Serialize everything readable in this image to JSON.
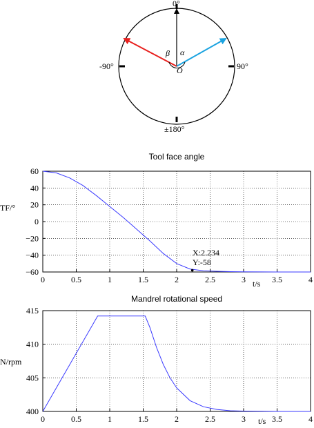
{
  "diagram": {
    "top_label": "0°",
    "left_label": "-90°",
    "right_label": "90°",
    "bottom_label": "±180°",
    "center_label": "O",
    "alpha_label": "α",
    "beta_label": "β",
    "colors": {
      "left_arrow": "#e8201e",
      "right_arrow": "#1ba3e0",
      "up_arrow": "#000000"
    }
  },
  "chart_data": [
    {
      "type": "line",
      "title": "Tool face angle",
      "ylabel": "TF/°",
      "xlabel": "t/s",
      "xlim": [
        0,
        4
      ],
      "ylim": [
        -60,
        60
      ],
      "x_ticks": [
        "0",
        "0.5",
        "1",
        "1.5",
        "2",
        "2.5",
        "3",
        "3.5",
        "4"
      ],
      "y_ticks": [
        "60",
        "40",
        "20",
        "0",
        "−20",
        "−40",
        "−60"
      ],
      "grid": true,
      "series": [
        {
          "color": "#3a3aff",
          "x": [
            0,
            0.2,
            0.4,
            0.6,
            0.8,
            1.0,
            1.2,
            1.4,
            1.6,
            1.8,
            2.0,
            2.2,
            2.4,
            2.6,
            2.8,
            3.0,
            3.5,
            4.0
          ],
          "y": [
            60,
            58,
            52,
            43,
            31,
            18,
            5,
            -9,
            -23,
            -38,
            -50,
            -56.5,
            -58.5,
            -59.2,
            -59.6,
            -59.8,
            -60,
            -60
          ]
        }
      ],
      "annotation": {
        "x": 2.234,
        "y": -58,
        "x_text": "X:2.234",
        "y_text": "Y:-58"
      }
    },
    {
      "type": "line",
      "title": "Mandrel rotational speed",
      "ylabel": "N/rpm",
      "xlabel": "t/s",
      "xlim": [
        0,
        4
      ],
      "ylim": [
        400,
        415
      ],
      "x_ticks": [
        "0",
        "0.5",
        "1",
        "1.5",
        "2",
        "2.5",
        "3",
        "3.5",
        "4"
      ],
      "y_ticks": [
        "415",
        "410",
        "405",
        "400"
      ],
      "grid": true,
      "series": [
        {
          "color": "#3a3aff",
          "x": [
            0,
            0.82,
            1.53,
            1.6,
            1.7,
            1.8,
            1.9,
            2.0,
            2.2,
            2.4,
            2.6,
            2.8,
            3.0,
            3.5,
            4.0
          ],
          "y": [
            400,
            414.2,
            414.2,
            412.5,
            409.5,
            407,
            405,
            403.5,
            401.6,
            400.7,
            400.3,
            400.1,
            400.05,
            400,
            400
          ]
        }
      ]
    }
  ]
}
